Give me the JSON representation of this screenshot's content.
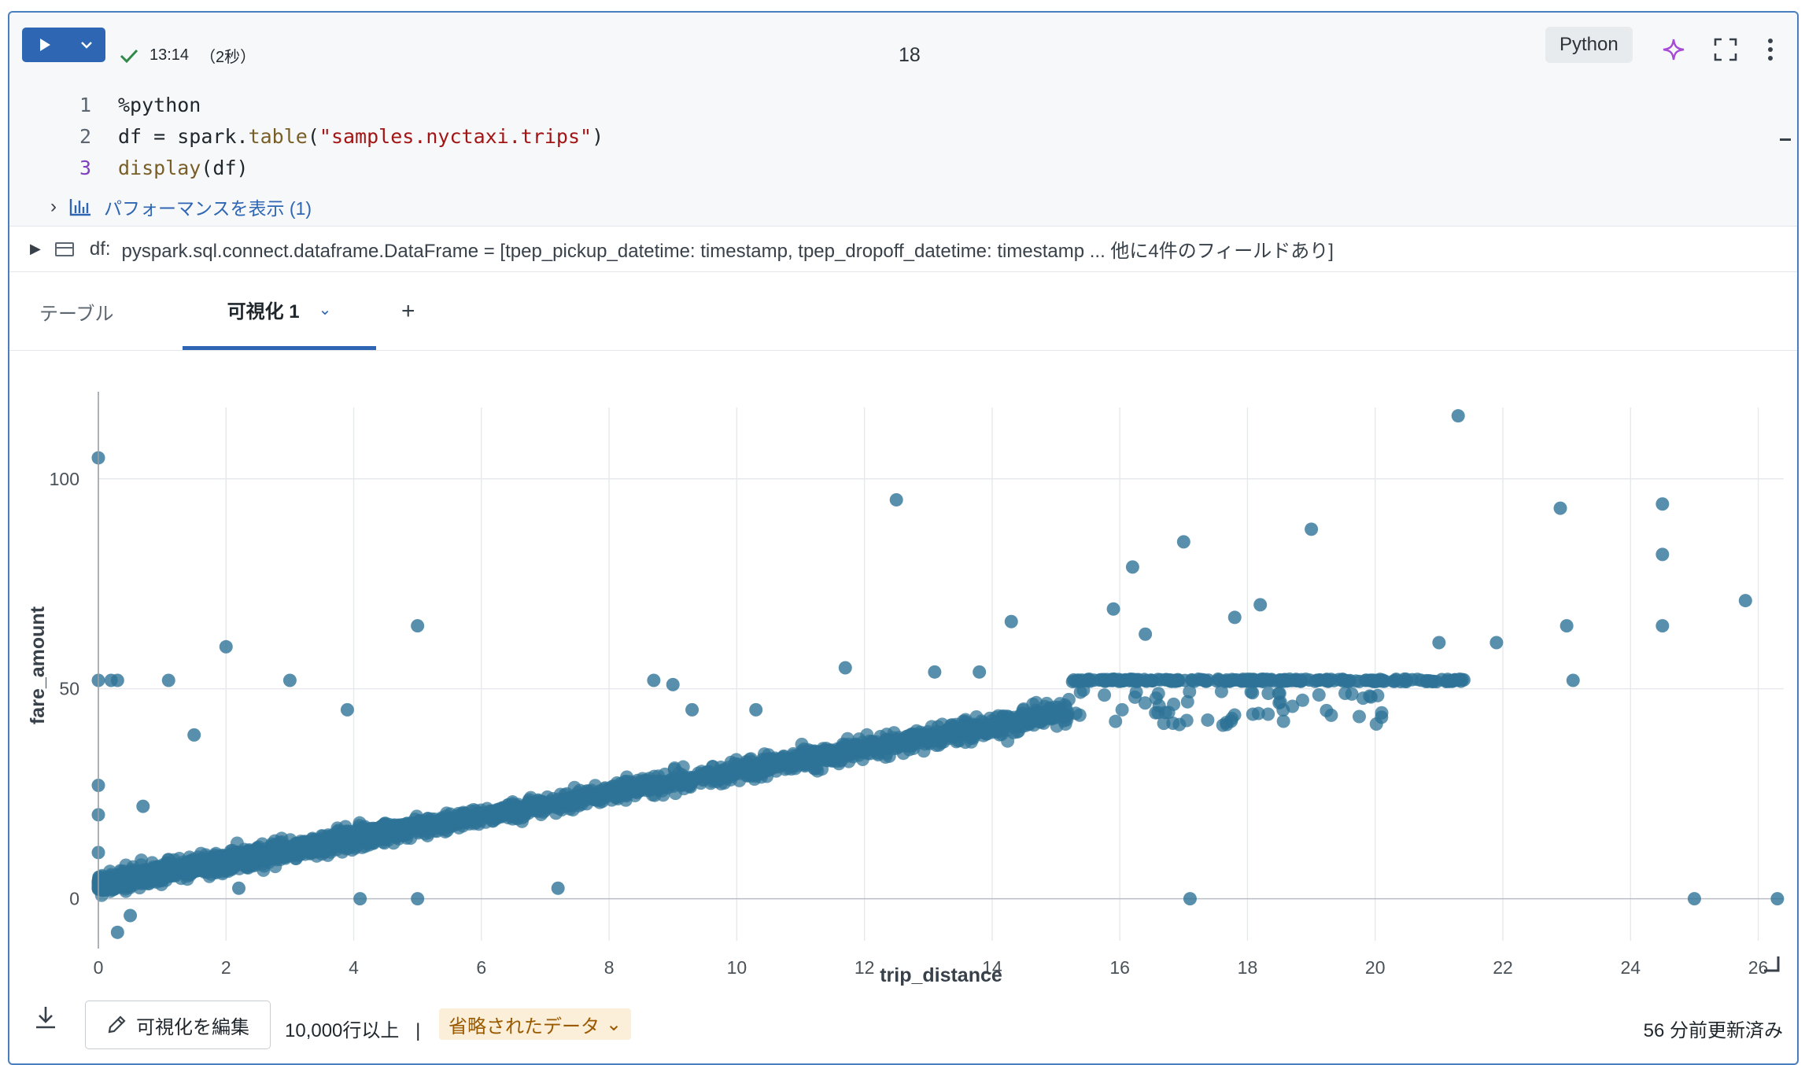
{
  "cell": {
    "run_icon": "play-icon",
    "dropdown_icon": "chevron-down-icon",
    "status_time": "13:14",
    "status_duration": "（2秒）",
    "cell_number": "18",
    "language": "Python",
    "assistant_icon": "sparkle-icon",
    "fullscreen_icon": "expand-icon",
    "more_icon": "kebab-menu-icon"
  },
  "code": {
    "lines": [
      {
        "n": "1",
        "text": "%python"
      },
      {
        "n": "2",
        "text": "df = spark.table(\"samples.nyctaxi.trips\")"
      },
      {
        "n": "3",
        "text": "display(df)"
      }
    ],
    "line2_parts": {
      "a": "df = spark.",
      "fn": "table",
      "b": "(",
      "str": "\"samples.nyctaxi.trips\"",
      "c": ")"
    },
    "line3_parts": {
      "fn": "display",
      "b": "(df)"
    },
    "performance_label": "パフォーマンスを表示 (1)"
  },
  "df_schema": {
    "name": "df:",
    "text": "pyspark.sql.connect.dataframe.DataFrame = [tpep_pickup_datetime: timestamp, tpep_dropoff_datetime: timestamp ... 他に4件のフィールドあり]"
  },
  "tabs": {
    "table": "テーブル",
    "viz": "可視化 1",
    "add": "+"
  },
  "chart_data": {
    "type": "scatter",
    "xlabel": "trip_distance",
    "ylabel": "fare_amount",
    "xlim": [
      0,
      26.4
    ],
    "ylim": [
      -10,
      117
    ],
    "xticks": [
      0,
      2,
      4,
      6,
      8,
      10,
      12,
      14,
      16,
      18,
      20,
      22,
      24,
      26
    ],
    "yticks": [
      0,
      50,
      100
    ],
    "color": "#2e7397",
    "outliers": [
      {
        "x": 0,
        "y": 105
      },
      {
        "x": 0,
        "y": 52
      },
      {
        "x": 0.2,
        "y": 52
      },
      {
        "x": 0.3,
        "y": 52
      },
      {
        "x": 1.1,
        "y": 52
      },
      {
        "x": 2,
        "y": 60
      },
      {
        "x": 3,
        "y": 52
      },
      {
        "x": 5,
        "y": 65
      },
      {
        "x": 3.9,
        "y": 45
      },
      {
        "x": 1.5,
        "y": 39
      },
      {
        "x": 0,
        "y": 27
      },
      {
        "x": 0,
        "y": 20
      },
      {
        "x": 0.7,
        "y": 22
      },
      {
        "x": 0,
        "y": 11
      },
      {
        "x": 0.5,
        "y": -4
      },
      {
        "x": 0.3,
        "y": -8
      },
      {
        "x": 2.2,
        "y": 2.5
      },
      {
        "x": 4.1,
        "y": 0
      },
      {
        "x": 5.0,
        "y": 0
      },
      {
        "x": 7.2,
        "y": 2.5
      },
      {
        "x": 12.5,
        "y": 95
      },
      {
        "x": 14.3,
        "y": 66
      },
      {
        "x": 16.2,
        "y": 79
      },
      {
        "x": 17.0,
        "y": 85
      },
      {
        "x": 17.8,
        "y": 67
      },
      {
        "x": 18.2,
        "y": 70
      },
      {
        "x": 19.0,
        "y": 88
      },
      {
        "x": 15.9,
        "y": 69
      },
      {
        "x": 16.4,
        "y": 63
      },
      {
        "x": 21.3,
        "y": 115
      },
      {
        "x": 22.9,
        "y": 93
      },
      {
        "x": 23.0,
        "y": 65
      },
      {
        "x": 24.5,
        "y": 94
      },
      {
        "x": 24.5,
        "y": 82
      },
      {
        "x": 24.5,
        "y": 65
      },
      {
        "x": 25.8,
        "y": 71
      },
      {
        "x": 21.9,
        "y": 61
      },
      {
        "x": 21.0,
        "y": 61
      },
      {
        "x": 17.1,
        "y": 0
      },
      {
        "x": 25.0,
        "y": 0
      },
      {
        "x": 26.3,
        "y": 0
      },
      {
        "x": 11.7,
        "y": 55
      },
      {
        "x": 13.1,
        "y": 54
      },
      {
        "x": 13.8,
        "y": 54
      },
      {
        "x": 8.7,
        "y": 52
      },
      {
        "x": 9.0,
        "y": 51
      },
      {
        "x": 23.1,
        "y": 52
      },
      {
        "x": 9.3,
        "y": 45
      },
      {
        "x": 10.3,
        "y": 45
      }
    ],
    "band": {
      "slope": 2.7,
      "intercept": 3.5,
      "x_end": 15.2,
      "spread": 2.2
    },
    "cap": {
      "y": 52,
      "x_from": 15.2,
      "x_to": 21.4
    }
  },
  "footer": {
    "download_icon": "download-icon",
    "edit_icon": "pencil-icon",
    "edit_label": "可視化を編集",
    "rows_label": "10,000行以上",
    "separator": "|",
    "truncated_label": "省略されたデータ",
    "updated_label": "56 分前更新済み"
  }
}
